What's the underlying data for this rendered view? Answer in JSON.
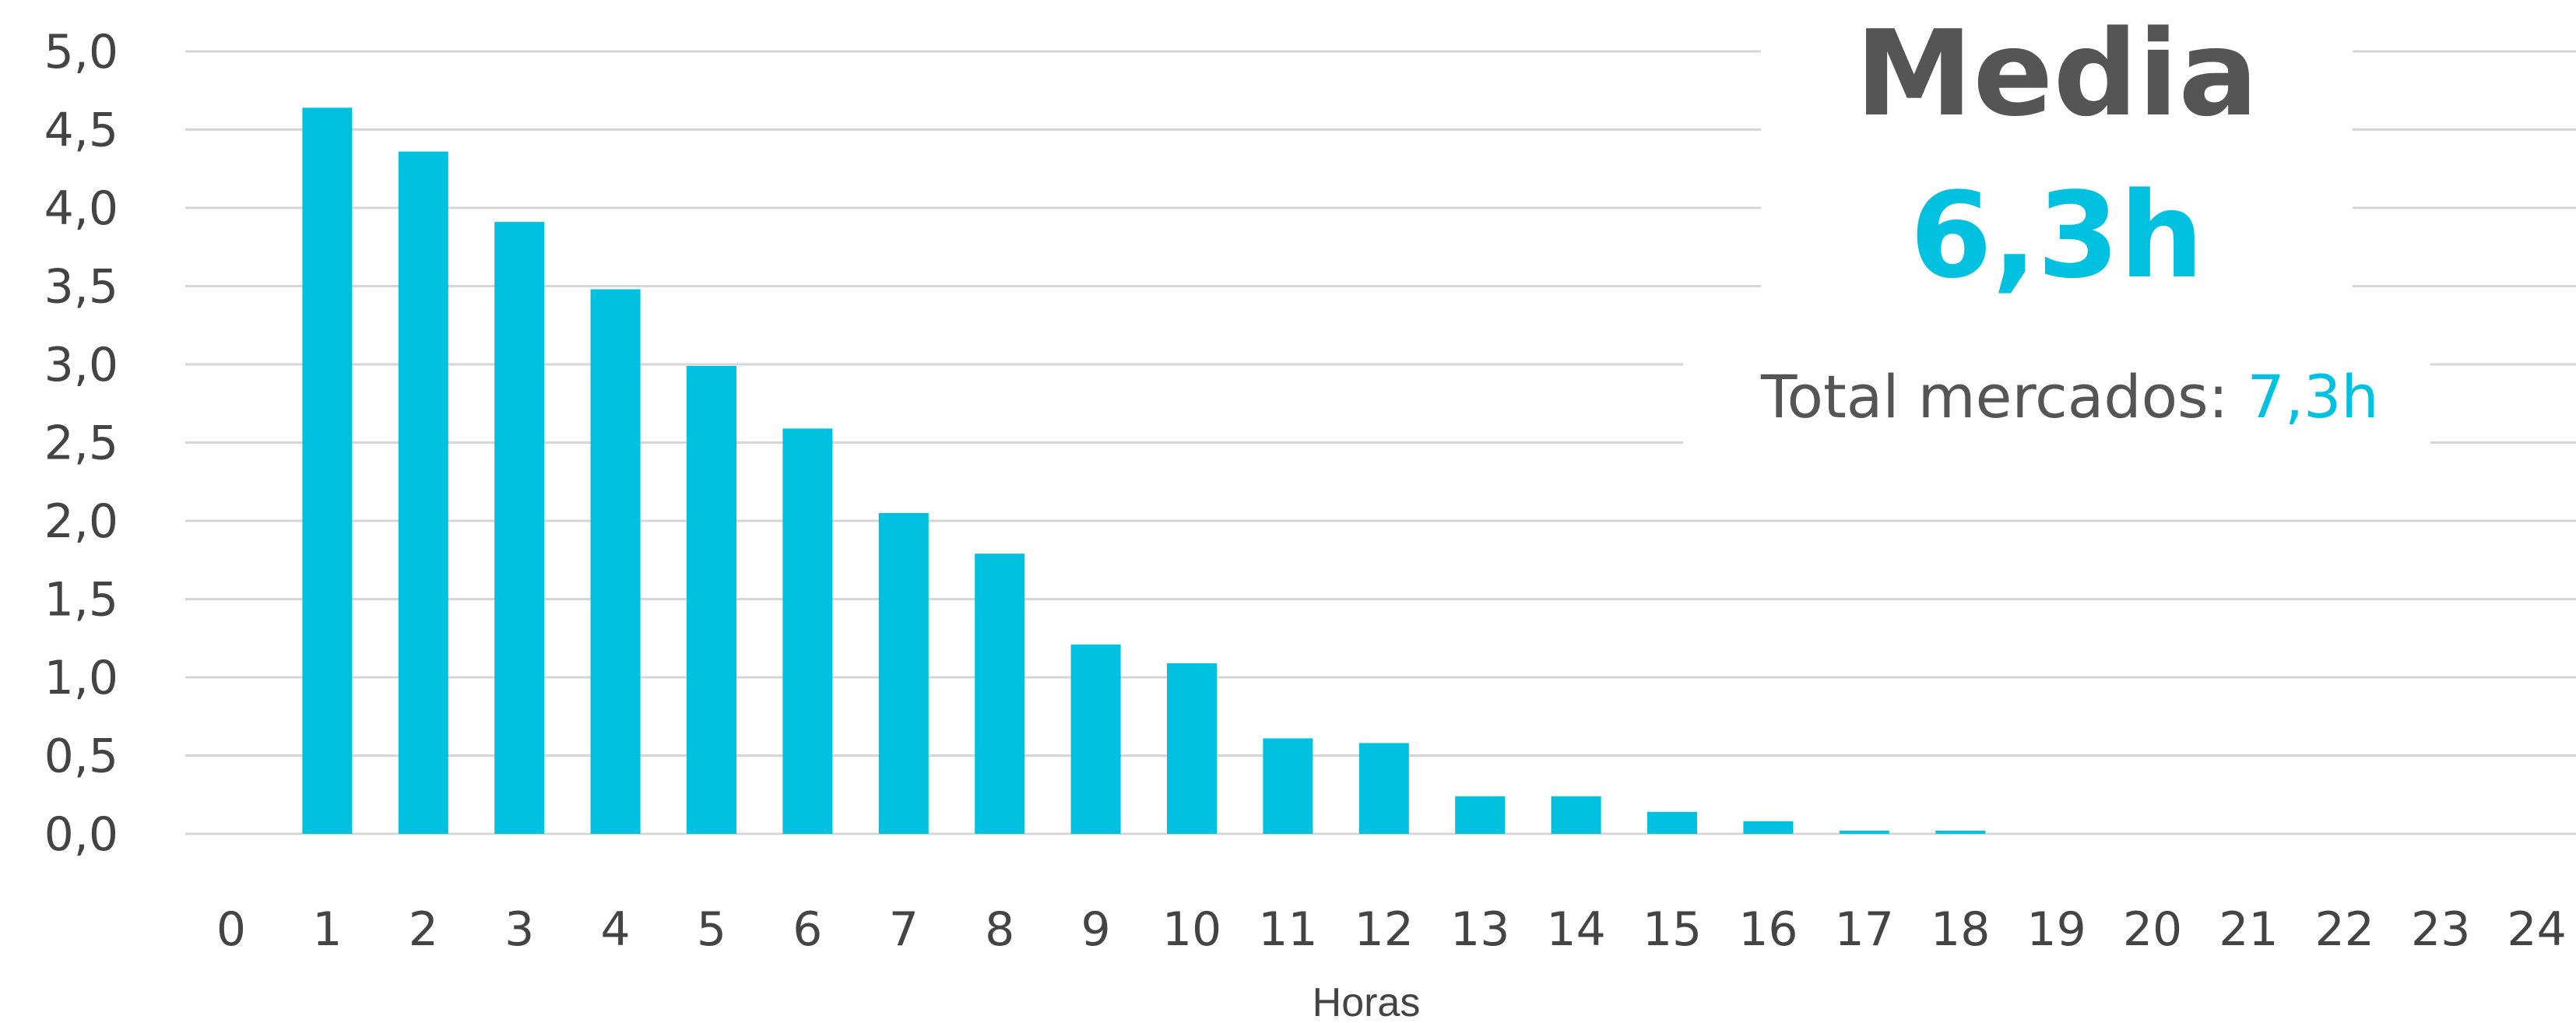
{
  "chart_data": {
    "type": "bar",
    "title": "",
    "xlabel": "Horas",
    "ylabel": "",
    "categories": [
      "0",
      "1",
      "2",
      "3",
      "4",
      "5",
      "6",
      "7",
      "8",
      "9",
      "10",
      "11",
      "12",
      "13",
      "14",
      "15",
      "16",
      "17",
      "18",
      "19",
      "20",
      "21",
      "22",
      "23",
      "24"
    ],
    "values": [
      0,
      4.64,
      4.36,
      3.91,
      3.48,
      2.99,
      2.59,
      2.05,
      1.79,
      1.21,
      1.09,
      0.61,
      0.58,
      0.24,
      0.24,
      0.14,
      0.08,
      0.02,
      0.02,
      0,
      0,
      0,
      0,
      0,
      0
    ],
    "ylim": [
      0,
      5
    ],
    "yticks": [
      "0,0",
      "0,5",
      "1,0",
      "1,5",
      "2,0",
      "2,5",
      "3,0",
      "3,5",
      "4,0",
      "4,5",
      "5,0"
    ],
    "grid": true,
    "bar_color": "#00c2e0"
  },
  "annotation": {
    "heading": "Media",
    "value": "6,3h",
    "total_label": "Total mercados: ",
    "total_value": "7,3h",
    "accent_color": "#00c2e0",
    "text_color": "#555555"
  }
}
